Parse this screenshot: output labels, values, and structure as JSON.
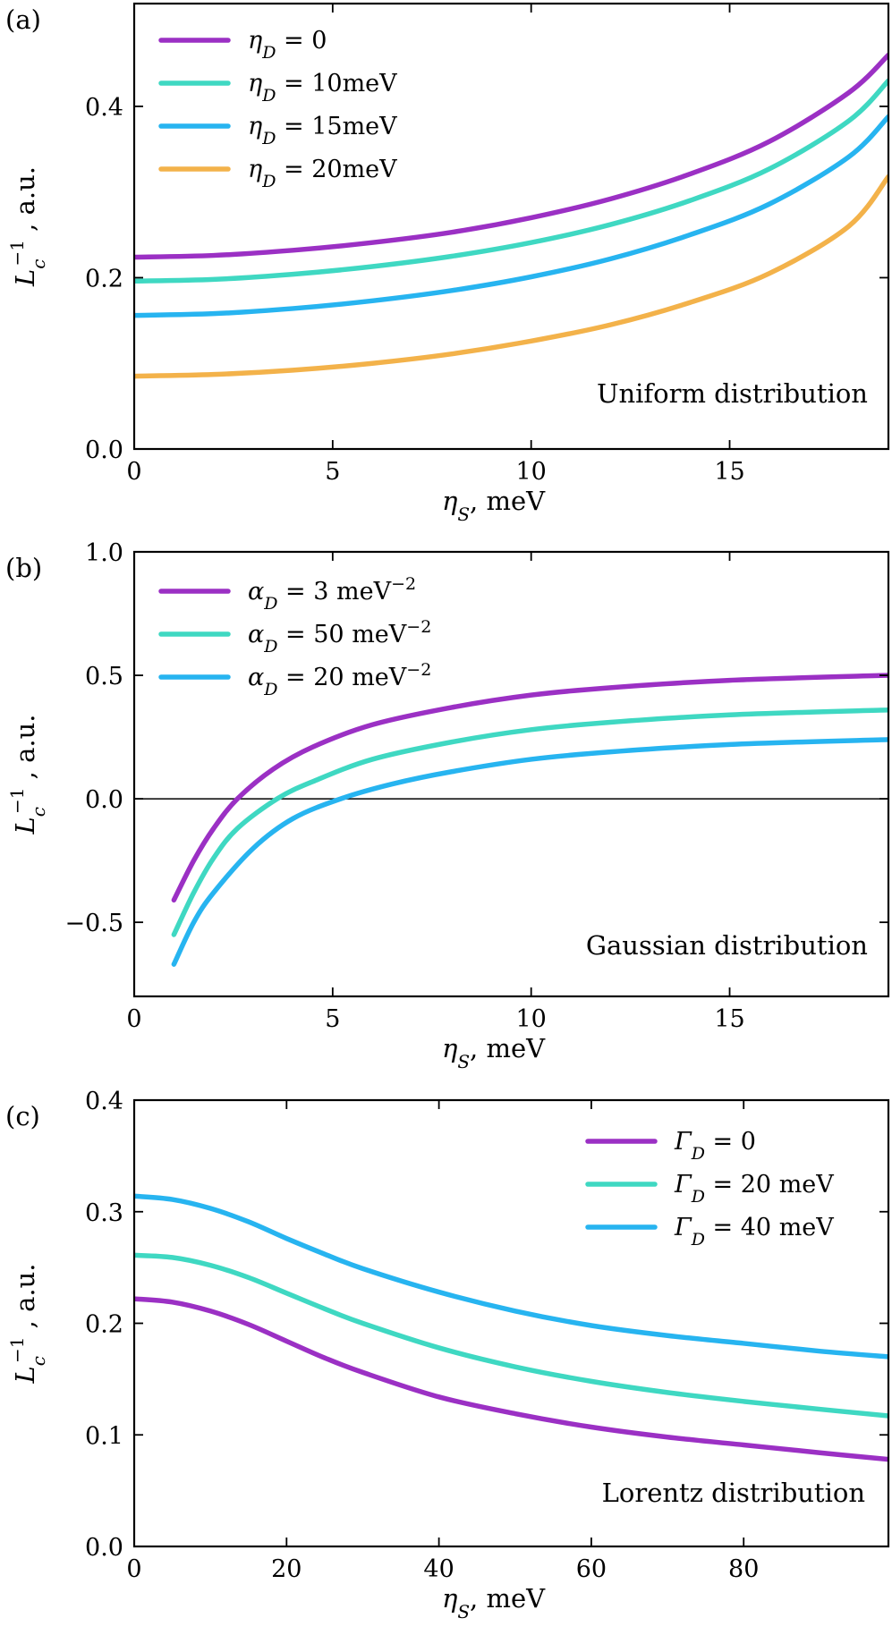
{
  "chart_data": [
    {
      "type": "line",
      "panel_label": "(a)",
      "xlabel": "ηS,  meV",
      "ylabel": "Lc−1 , a.u.",
      "xlim": [
        0,
        19
      ],
      "ylim": [
        0,
        0.52
      ],
      "xticks": [
        0,
        5,
        10,
        15
      ],
      "xtick_labels": [
        "0",
        "5",
        "10",
        "15"
      ],
      "yticks": [
        0,
        0.2,
        0.4
      ],
      "ytick_labels": [
        "0.0",
        "0.2",
        "0.4"
      ],
      "zero_line": false,
      "legend_position": "top-left",
      "annotation": "Uniform distribution",
      "series": [
        {
          "name": "ηD = 0",
          "color": "#9b30c4",
          "x": [
            0,
            2,
            4,
            6,
            8,
            10,
            12,
            14,
            16,
            18,
            19
          ],
          "y": [
            0.224,
            0.226,
            0.232,
            0.241,
            0.253,
            0.27,
            0.292,
            0.321,
            0.359,
            0.416,
            0.46
          ]
        },
        {
          "name": "ηD = 10meV",
          "color": "#3fd8c2",
          "x": [
            0,
            2,
            4,
            6,
            8,
            10,
            12,
            14,
            16,
            18,
            19
          ],
          "y": [
            0.196,
            0.198,
            0.204,
            0.213,
            0.225,
            0.241,
            0.262,
            0.29,
            0.327,
            0.383,
            0.43
          ]
        },
        {
          "name": "ηD = 15meV",
          "color": "#27b4f0",
          "x": [
            0,
            2,
            4,
            6,
            8,
            10,
            12,
            14,
            16,
            18,
            19
          ],
          "y": [
            0.156,
            0.158,
            0.164,
            0.173,
            0.185,
            0.201,
            0.222,
            0.25,
            0.286,
            0.341,
            0.388
          ]
        },
        {
          "name": "ηD = 20meV",
          "color": "#f3b24a",
          "x": [
            0,
            2,
            4,
            6,
            8,
            10,
            12,
            14,
            16,
            18,
            19
          ],
          "y": [
            0.085,
            0.087,
            0.092,
            0.1,
            0.111,
            0.126,
            0.145,
            0.171,
            0.205,
            0.26,
            0.318
          ]
        }
      ]
    },
    {
      "type": "line",
      "panel_label": "(b)",
      "xlabel": "ηS,  meV",
      "ylabel": "Lc−1 , a.u.",
      "xlim": [
        0,
        19
      ],
      "ylim": [
        -0.8,
        1.0
      ],
      "xticks": [
        0,
        5,
        10,
        15
      ],
      "xtick_labels": [
        "0",
        "5",
        "10",
        "15"
      ],
      "yticks": [
        -0.5,
        0,
        0.5,
        1.0
      ],
      "ytick_labels": [
        "−0.5",
        "0.0",
        "0.5",
        "1.0"
      ],
      "zero_line": true,
      "legend_position": "top-left",
      "annotation": "Gaussian distribution",
      "series": [
        {
          "name": "αD = 3 meV−2",
          "color": "#9b30c4",
          "x": [
            1.0,
            1.5,
            2.0,
            2.6,
            3.5,
            4.5,
            6,
            8,
            10,
            12,
            15,
            19
          ],
          "y": [
            -0.41,
            -0.25,
            -0.12,
            0.0,
            0.12,
            0.21,
            0.3,
            0.37,
            0.42,
            0.45,
            0.48,
            0.5
          ]
        },
        {
          "name": "αD = 50 meV−2",
          "color": "#3fd8c2",
          "x": [
            1.0,
            1.5,
            2.0,
            2.6,
            3.6,
            4.5,
            6,
            8,
            10,
            12,
            15,
            19
          ],
          "y": [
            -0.55,
            -0.38,
            -0.24,
            -0.12,
            0.0,
            0.07,
            0.16,
            0.23,
            0.28,
            0.31,
            0.34,
            0.36
          ]
        },
        {
          "name": "αD = 20 meV−2",
          "color": "#27b4f0",
          "x": [
            1.0,
            1.5,
            2.0,
            3.0,
            4.0,
            5.2,
            6.5,
            8,
            10,
            12,
            15,
            19
          ],
          "y": [
            -0.67,
            -0.5,
            -0.38,
            -0.2,
            -0.08,
            0.0,
            0.06,
            0.11,
            0.16,
            0.19,
            0.22,
            0.24
          ]
        }
      ]
    },
    {
      "type": "line",
      "panel_label": "(c)",
      "xlabel": "ηS,  meV",
      "ylabel": "Lc−1 , a.u.",
      "xlim": [
        0,
        99
      ],
      "ylim": [
        0,
        0.4
      ],
      "xticks": [
        0,
        20,
        40,
        60,
        80
      ],
      "xtick_labels": [
        "0",
        "20",
        "40",
        "60",
        "80"
      ],
      "yticks": [
        0,
        0.1,
        0.2,
        0.3,
        0.4
      ],
      "ytick_labels": [
        "0.0",
        "0.1",
        "0.2",
        "0.3",
        "0.4"
      ],
      "zero_line": false,
      "legend_position": "top-right",
      "annotation": "Lorentz distribution",
      "series": [
        {
          "name": "ΓD = 0",
          "color": "#9b30c4",
          "x": [
            0,
            5,
            10,
            15,
            20,
            25,
            30,
            40,
            50,
            60,
            70,
            80,
            90,
            99
          ],
          "y": [
            0.222,
            0.219,
            0.211,
            0.199,
            0.184,
            0.169,
            0.156,
            0.134,
            0.119,
            0.107,
            0.098,
            0.091,
            0.084,
            0.078
          ]
        },
        {
          "name": "ΓD = 20 meV",
          "color": "#3fd8c2",
          "x": [
            0,
            5,
            10,
            15,
            20,
            25,
            30,
            40,
            50,
            60,
            70,
            80,
            90,
            99
          ],
          "y": [
            0.261,
            0.259,
            0.252,
            0.241,
            0.227,
            0.213,
            0.2,
            0.178,
            0.161,
            0.148,
            0.138,
            0.13,
            0.123,
            0.117
          ]
        },
        {
          "name": "ΓD = 40 meV",
          "color": "#27b4f0",
          "x": [
            0,
            5,
            10,
            15,
            20,
            25,
            30,
            40,
            50,
            60,
            70,
            80,
            90,
            99
          ],
          "y": [
            0.314,
            0.311,
            0.303,
            0.291,
            0.276,
            0.262,
            0.249,
            0.228,
            0.211,
            0.198,
            0.189,
            0.182,
            0.175,
            0.17
          ]
        }
      ]
    }
  ]
}
